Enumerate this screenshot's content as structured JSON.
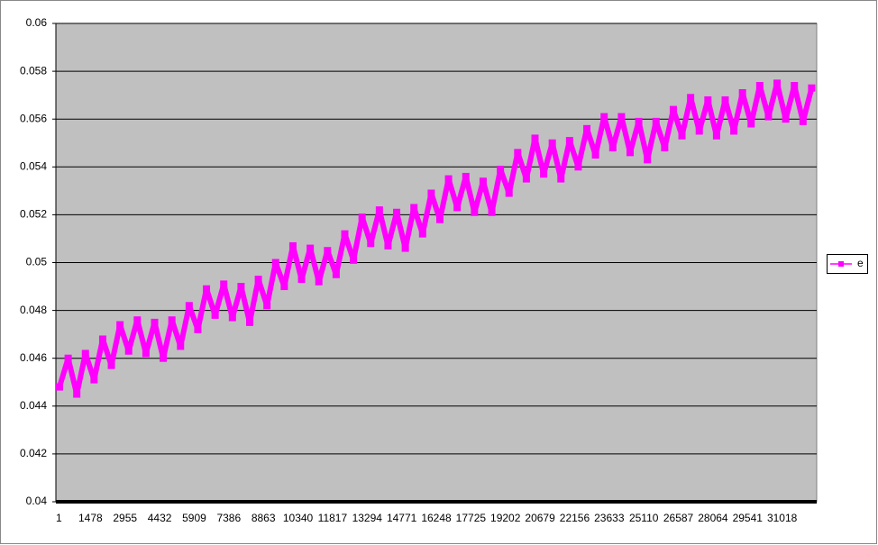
{
  "chart_data": {
    "type": "line",
    "categories": [
      1,
      null,
      null,
      null,
      1478,
      null,
      null,
      null,
      2955,
      null,
      null,
      null,
      4432,
      null,
      null,
      null,
      5909,
      null,
      null,
      null,
      7386,
      null,
      null,
      null,
      8863,
      null,
      null,
      null,
      10340,
      null,
      null,
      null,
      11817,
      null,
      null,
      null,
      13294,
      null,
      null,
      null,
      14771,
      null,
      null,
      null,
      16248,
      null,
      null,
      null,
      17725,
      null,
      null,
      null,
      19202,
      null,
      null,
      null,
      20679,
      null,
      null,
      null,
      22156,
      null,
      null,
      null,
      23633,
      null,
      null,
      null,
      25110,
      null,
      null,
      null,
      26587,
      null,
      null,
      null,
      28064,
      null,
      null,
      null,
      29541,
      null,
      null,
      null,
      31018,
      null,
      null,
      null
    ],
    "series": [
      {
        "name": "e",
        "color": "#ff00ff",
        "values": [
          0.0448,
          0.046,
          0.0445,
          0.0462,
          0.0451,
          0.0468,
          0.0457,
          0.0474,
          0.0463,
          0.0476,
          0.0462,
          0.0475,
          0.046,
          0.0476,
          0.0465,
          0.0482,
          0.0472,
          0.0489,
          0.0478,
          0.0491,
          0.0477,
          0.049,
          0.0475,
          0.0493,
          0.0482,
          0.05,
          0.049,
          0.0507,
          0.0493,
          0.0506,
          0.0492,
          0.0505,
          0.0495,
          0.0512,
          0.0501,
          0.0519,
          0.0508,
          0.0522,
          0.0507,
          0.0521,
          0.0506,
          0.0523,
          0.0512,
          0.0529,
          0.0518,
          0.0535,
          0.0523,
          0.0536,
          0.0521,
          0.0534,
          0.0521,
          0.0539,
          0.0529,
          0.0546,
          0.0535,
          0.0552,
          0.0537,
          0.055,
          0.0535,
          0.0551,
          0.054,
          0.0556,
          0.0545,
          0.0561,
          0.0548,
          0.0561,
          0.0546,
          0.0559,
          0.0543,
          0.0559,
          0.0548,
          0.0564,
          0.0553,
          0.0569,
          0.0555,
          0.0568,
          0.0553,
          0.0568,
          0.0555,
          0.0571,
          0.0558,
          0.0574,
          0.0561,
          0.0575,
          0.056,
          0.0574,
          0.0559,
          0.0573
        ]
      }
    ],
    "ylim": [
      0.04,
      0.06
    ],
    "yticks": [
      0.04,
      0.042,
      0.044,
      0.046,
      0.048,
      0.05,
      0.052,
      0.054,
      0.056,
      0.058,
      0.06
    ],
    "grid": true,
    "legend": "right"
  }
}
